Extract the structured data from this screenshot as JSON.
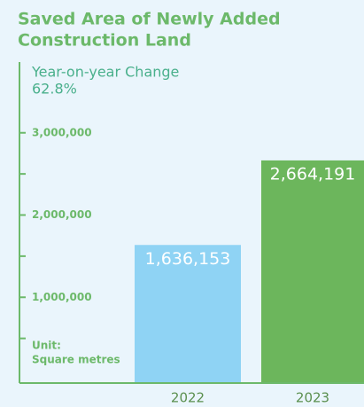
{
  "chart_data": {
    "type": "bar",
    "title": [
      "Saved Area of Newly Added",
      "Construction Land"
    ],
    "annotations": [
      "Year-on-year Change",
      "62.8%"
    ],
    "unit_label": [
      "Unit:",
      "Square metres"
    ],
    "categories": [
      "2022",
      "2023"
    ],
    "values": [
      1636153,
      2664191
    ],
    "value_labels": [
      "1,636,153",
      "2,664,191"
    ],
    "colors": [
      "#8fd3f4",
      "#6cb65c"
    ],
    "axis_color": "#6cb96a",
    "ylim": [
      0,
      3860000
    ],
    "yticks": [
      {
        "value": 1000000,
        "label": "1,000,000"
      },
      {
        "value": 2000000,
        "label": "2,000,000"
      },
      {
        "value": 3000000,
        "label": "3,000,000"
      }
    ],
    "yminor_ticks": [
      500000,
      1500000,
      2500000
    ]
  }
}
